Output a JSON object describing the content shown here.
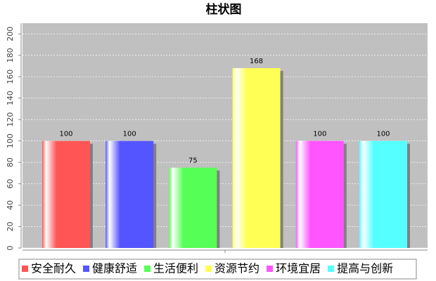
{
  "chart_data": {
    "type": "bar",
    "title": "柱状图",
    "categories": [
      null
    ],
    "series": [
      {
        "name": "安全耐久",
        "color": "#ff5555",
        "values": [
          100
        ]
      },
      {
        "name": "健康舒适",
        "color": "#5555ff",
        "values": [
          100
        ]
      },
      {
        "name": "生活便利",
        "color": "#55ff55",
        "values": [
          75
        ]
      },
      {
        "name": "资源节约",
        "color": "#ffff55",
        "values": [
          168
        ]
      },
      {
        "name": "环境宜居",
        "color": "#ff55ff",
        "values": [
          100
        ]
      },
      {
        "name": "提高与创新",
        "color": "#55ffff",
        "values": [
          100
        ]
      }
    ],
    "ylim": [
      0,
      210
    ],
    "yticks": [
      0,
      20,
      40,
      60,
      80,
      100,
      120,
      140,
      160,
      180,
      200
    ],
    "grid": true,
    "legend": "bottom"
  }
}
